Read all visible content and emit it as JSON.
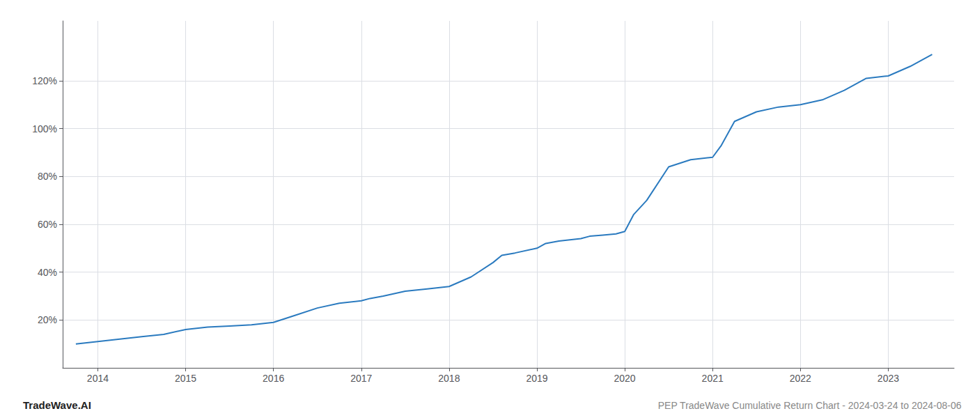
{
  "chart_data": {
    "type": "line",
    "title": "PEP TradeWave Cumulative Return Chart - 2024-03-24 to 2024-08-06",
    "annotations": [
      "TradeWave.AI"
    ],
    "color": "#2a7abf",
    "x": [
      2013.75,
      2014.0,
      2014.25,
      2014.5,
      2014.75,
      2015.0,
      2015.25,
      2015.5,
      2015.75,
      2016.0,
      2016.25,
      2016.5,
      2016.75,
      2017.0,
      2017.1,
      2017.25,
      2017.5,
      2017.75,
      2018.0,
      2018.25,
      2018.5,
      2018.6,
      2018.75,
      2019.0,
      2019.1,
      2019.25,
      2019.5,
      2019.6,
      2019.75,
      2019.9,
      2020.0,
      2020.1,
      2020.25,
      2020.5,
      2020.75,
      2021.0,
      2021.1,
      2021.25,
      2021.5,
      2021.75,
      2022.0,
      2022.25,
      2022.5,
      2022.75,
      2023.0,
      2023.25,
      2023.5
    ],
    "values": [
      10,
      11,
      12,
      13,
      14,
      16,
      17,
      17.5,
      18,
      19,
      22,
      25,
      27,
      28,
      29,
      30,
      32,
      33,
      34,
      38,
      44,
      47,
      48,
      50,
      52,
      53,
      54,
      55,
      55.5,
      56,
      57,
      64,
      70,
      84,
      87,
      88,
      93,
      103,
      107,
      109,
      110,
      112,
      116,
      121,
      122,
      126,
      131
    ],
    "xlim": [
      2013.6,
      2023.75
    ],
    "ylim": [
      0,
      145
    ],
    "xticks": [
      2014,
      2015,
      2016,
      2017,
      2018,
      2019,
      2020,
      2021,
      2022,
      2023
    ],
    "yticks": [
      {
        "value": 20,
        "label": "20%"
      },
      {
        "value": 40,
        "label": "40%"
      },
      {
        "value": 60,
        "label": "60%"
      },
      {
        "value": 80,
        "label": "80%"
      },
      {
        "value": 100,
        "label": "100%"
      },
      {
        "value": 120,
        "label": "120%"
      }
    ],
    "grid": true
  }
}
